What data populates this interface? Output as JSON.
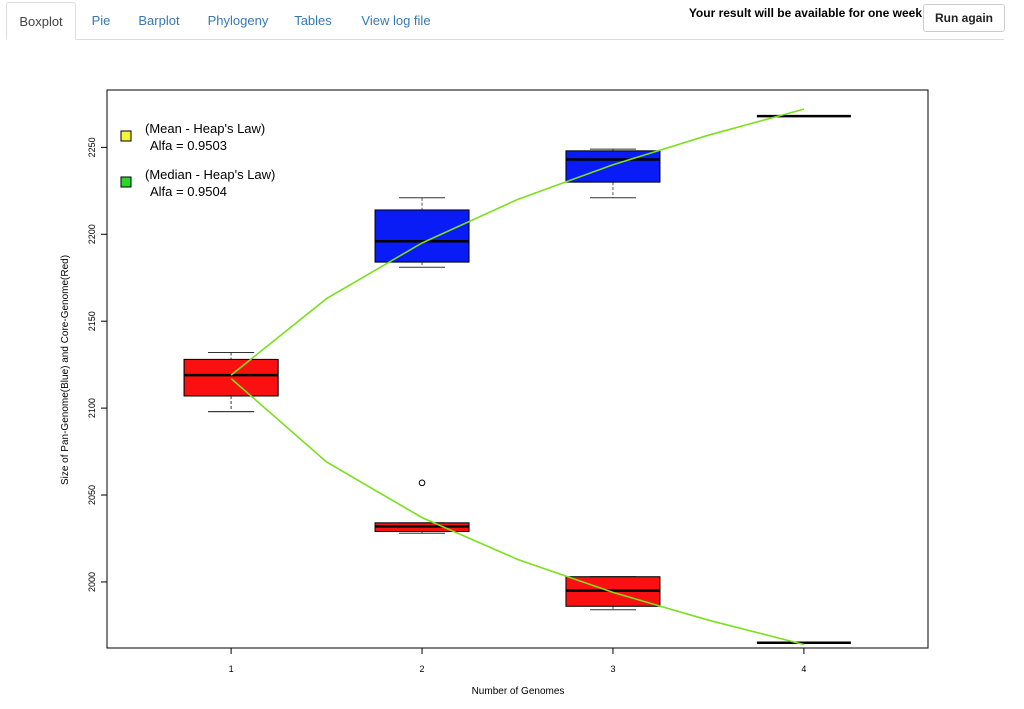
{
  "tabs": [
    {
      "label": "Boxplot",
      "active": true
    },
    {
      "label": "Pie",
      "active": false
    },
    {
      "label": "Barplot",
      "active": false
    },
    {
      "label": "Phylogeny",
      "active": false
    },
    {
      "label": "Tables",
      "active": false
    },
    {
      "label": "View log file",
      "active": false
    }
  ],
  "header": {
    "notice": "Your result will be available for one week",
    "run_again": "Run again"
  },
  "chart_data": {
    "type": "boxplot",
    "xlabel": "Number of Genomes",
    "ylabel": "Size of Pan-Genome(Blue) and Core-Genome(Red)",
    "xlim": [
      0.35,
      4.65
    ],
    "ylim": [
      1962,
      2283
    ],
    "x_ticks": [
      1,
      2,
      3,
      4
    ],
    "y_ticks": [
      2000,
      2050,
      2100,
      2150,
      2200,
      2250
    ],
    "grid": false,
    "legend_position": "top-left",
    "legend": [
      {
        "label": "(Mean - Heap's Law)",
        "sub": "Alfa = 0.9503",
        "color": "#f5f53a"
      },
      {
        "label": "(Median - Heap's Law)",
        "sub": "Alfa = 0.9504",
        "color": "#2bd62b"
      }
    ],
    "series": [
      {
        "name": "Pan-Genome",
        "color": "#0a1cf5",
        "boxes": [
          {
            "x": 1,
            "min": 2098,
            "q1": 2107,
            "median": 2119,
            "q3": 2128,
            "max": 2132,
            "outliers": []
          },
          {
            "x": 2,
            "min": 2181,
            "q1": 2184,
            "median": 2196,
            "q3": 2214,
            "max": 2221,
            "outliers": []
          },
          {
            "x": 3,
            "min": 2221,
            "q1": 2230,
            "median": 2243,
            "q3": 2248,
            "max": 2249,
            "outliers": []
          },
          {
            "x": 4,
            "min": 2268,
            "q1": 2268,
            "median": 2268,
            "q3": 2268,
            "max": 2268,
            "outliers": []
          }
        ]
      },
      {
        "name": "Core-Genome",
        "color": "#fa1010",
        "boxes": [
          {
            "x": 1,
            "min": 2098,
            "q1": 2107,
            "median": 2119,
            "q3": 2128,
            "max": 2132,
            "outliers": []
          },
          {
            "x": 2,
            "min": 2028,
            "q1": 2029,
            "median": 2032,
            "q3": 2034,
            "max": 2034,
            "outliers": [
              2057
            ]
          },
          {
            "x": 3,
            "min": 1984,
            "q1": 1986,
            "median": 1995,
            "q3": 2003,
            "max": 2003,
            "outliers": []
          },
          {
            "x": 4,
            "min": 1965,
            "q1": 1965,
            "median": 1965,
            "q3": 1965,
            "max": 1965,
            "outliers": []
          }
        ]
      }
    ],
    "fit_curves": [
      {
        "x": [
          1,
          1.5,
          2,
          2.5,
          3,
          3.5,
          4
        ],
        "y": [
          2119,
          2163,
          2195,
          2220,
          2240,
          2257,
          2272
        ],
        "color": "#7be01c"
      },
      {
        "x": [
          1,
          1.5,
          2,
          2.5,
          3,
          3.5,
          4
        ],
        "y": [
          2117,
          2069,
          2037,
          2013,
          1994,
          1978,
          1964
        ],
        "color": "#7be01c"
      }
    ]
  }
}
